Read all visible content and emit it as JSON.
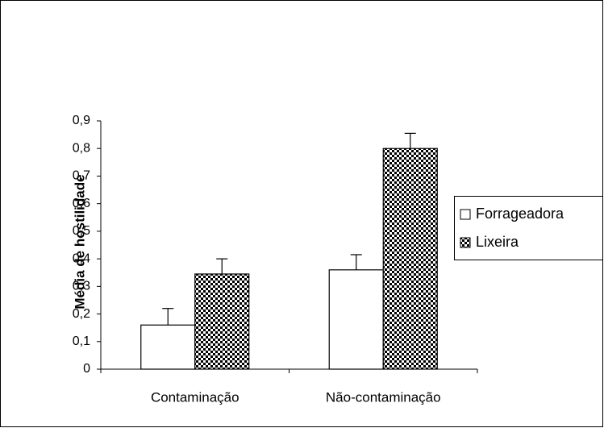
{
  "chart_data": {
    "type": "bar",
    "y_label": "Média de hostilidade",
    "categories": [
      "Contaminação",
      "Não-contaminação"
    ],
    "series": [
      {
        "name": "Forrageadora",
        "color": "#ffffff",
        "values": [
          0.16,
          0.36
        ],
        "errors": [
          0.06,
          0.055
        ]
      },
      {
        "name": "Lixeira",
        "color": "#000000",
        "pattern": "dots",
        "values": [
          0.345,
          0.8
        ],
        "errors": [
          0.055,
          0.055
        ]
      }
    ],
    "ylim": [
      0,
      0.9
    ],
    "yticks": [
      0,
      {
        "value": 0.1,
        "label": "0,1"
      },
      {
        "value": 0.2,
        "label": "0,2"
      },
      {
        "value": 0.3,
        "label": "0,3"
      },
      {
        "value": 0.4,
        "label": "0,4"
      },
      {
        "value": 0.5,
        "label": "0,5"
      },
      {
        "value": 0.6,
        "label": "0,6"
      },
      {
        "value": 0.7,
        "label": "0,7"
      },
      {
        "value": 0.8,
        "label": "0,8"
      },
      {
        "value": 0.9,
        "label": "0,9"
      }
    ],
    "legend": "right"
  }
}
